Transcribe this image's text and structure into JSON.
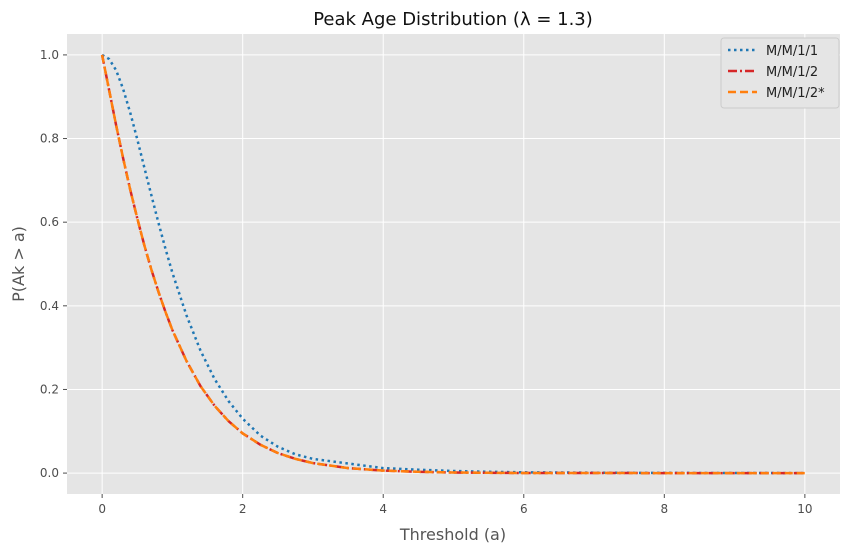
{
  "chart_data": {
    "type": "line",
    "title": "Peak Age Distribution (λ = 1.3)",
    "xlabel": "Threshold (a)",
    "ylabel": "P(Ak > a)",
    "xlim": [
      -0.5,
      10.5
    ],
    "ylim": [
      -0.05,
      1.05
    ],
    "xticks": [
      0,
      2,
      4,
      6,
      8,
      10
    ],
    "xtick_labels": [
      "0",
      "2",
      "4",
      "6",
      "8",
      "10"
    ],
    "yticks": [
      0.0,
      0.2,
      0.4,
      0.6,
      0.8,
      1.0
    ],
    "ytick_labels": [
      "0.0",
      "0.2",
      "0.4",
      "0.6",
      "0.8",
      "1.0"
    ],
    "grid": true,
    "legend_position": "top-right",
    "x": [
      0,
      0.1,
      0.2,
      0.3,
      0.4,
      0.5,
      0.6,
      0.7,
      0.8,
      0.9,
      1.0,
      1.2,
      1.4,
      1.6,
      1.8,
      2.0,
      2.25,
      2.5,
      2.75,
      3.0,
      3.5,
      4.0,
      4.5,
      5.0,
      5.5,
      6.0,
      7.0,
      8.0,
      9.0,
      10.0
    ],
    "series": [
      {
        "name": "M/M/1/1",
        "color": "#1f77b4",
        "style": "dotted",
        "values": [
          1.0,
          0.99,
          0.963,
          0.918,
          0.862,
          0.798,
          0.731,
          0.665,
          0.599,
          0.537,
          0.479,
          0.377,
          0.293,
          0.225,
          0.172,
          0.13,
          0.09,
          0.063,
          0.045,
          0.034,
          0.023,
          0.012,
          0.008,
          0.005,
          0.003,
          0.002,
          0.001,
          0.0004,
          0.0001,
          0.0
        ]
      },
      {
        "name": "M/M/1/2",
        "color": "#d62728",
        "style": "dashdot",
        "values": [
          1.0,
          0.915,
          0.831,
          0.752,
          0.678,
          0.609,
          0.545,
          0.487,
          0.434,
          0.386,
          0.342,
          0.268,
          0.208,
          0.161,
          0.124,
          0.095,
          0.068,
          0.048,
          0.034,
          0.024,
          0.012,
          0.006,
          0.003,
          0.0015,
          0.0007,
          0.0003,
          0.0001,
          0.0,
          0.0,
          0.0
        ]
      },
      {
        "name": "M/M/1/2*",
        "color": "#ff7f0e",
        "style": "dashed",
        "values": [
          1.0,
          0.915,
          0.831,
          0.752,
          0.678,
          0.609,
          0.545,
          0.487,
          0.434,
          0.386,
          0.342,
          0.268,
          0.208,
          0.161,
          0.124,
          0.095,
          0.068,
          0.048,
          0.034,
          0.024,
          0.012,
          0.006,
          0.003,
          0.0015,
          0.0007,
          0.0003,
          0.0001,
          0.0,
          0.0,
          0.0
        ]
      }
    ],
    "colors": {
      "plot_bg": "#e5e5e5",
      "grid": "#ffffff",
      "tick": "#4d4d4d"
    }
  }
}
